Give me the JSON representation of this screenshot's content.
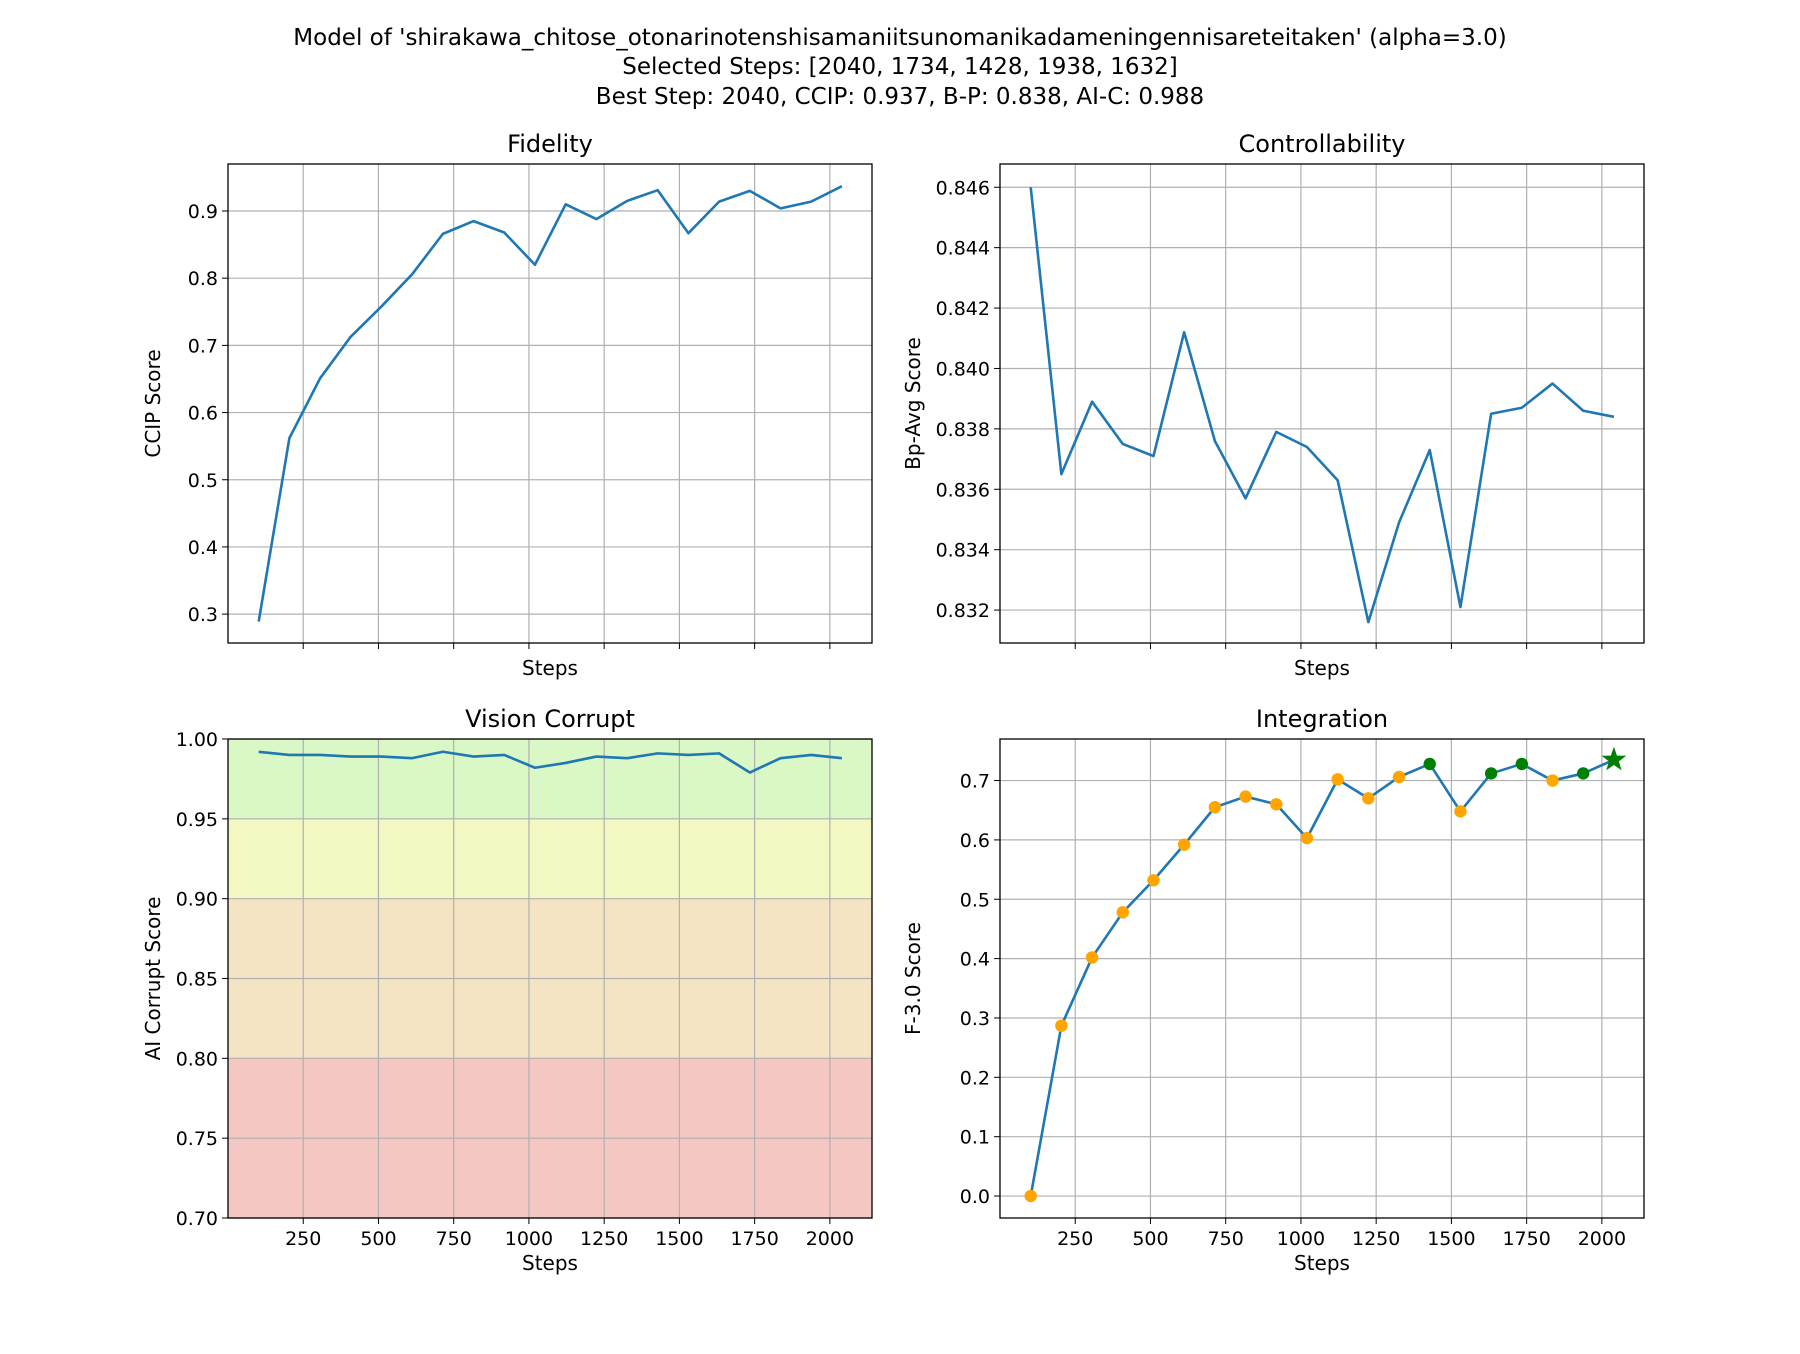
{
  "figure": {
    "title_lines": [
      "Model of 'shirakawa_chitose_otonarinotenshisamaniitsunomanikadameningennisareteitaken' (alpha=3.0)",
      "Selected Steps: [2040, 1734, 1428, 1938, 1632]",
      "Best Step: 2040, CCIP: 0.937, B-P: 0.838, AI-C: 0.988"
    ]
  },
  "colors": {
    "line": "#1f77b4",
    "point": "#ffa500",
    "selected": "#008000",
    "grid": "#b0b0b0",
    "band_excellent": "#daf7c6",
    "band_good": "#f3f7c2",
    "band_fair": "#f5e4c3",
    "band_poor": "#f5c7c2"
  },
  "chart_data": [
    {
      "id": "fidelity",
      "type": "line",
      "title": "Fidelity",
      "xlabel": "Steps",
      "ylabel": "CCIP Score",
      "xlim": [
        0,
        2140
      ],
      "ylim": [
        0.257,
        0.97
      ],
      "xticks": [
        250,
        500,
        750,
        1000,
        1250,
        1500,
        1750,
        2000
      ],
      "xtick_labels_visible": false,
      "yticks": [
        0.3,
        0.4,
        0.5,
        0.6,
        0.7,
        0.8,
        0.9
      ],
      "ytick_labels": [
        "0.3",
        "0.4",
        "0.5",
        "0.6",
        "0.7",
        "0.8",
        "0.9"
      ],
      "grid": true,
      "x": [
        102,
        204,
        306,
        408,
        510,
        612,
        714,
        816,
        918,
        1020,
        1122,
        1224,
        1326,
        1428,
        1530,
        1632,
        1734,
        1836,
        1938,
        2040
      ],
      "y": [
        0.289,
        0.562,
        0.651,
        0.713,
        0.758,
        0.806,
        0.866,
        0.885,
        0.868,
        0.82,
        0.91,
        0.888,
        0.915,
        0.931,
        0.867,
        0.914,
        0.93,
        0.904,
        0.914,
        0.937
      ]
    },
    {
      "id": "controllability",
      "type": "line",
      "title": "Controllability",
      "xlabel": "Steps",
      "ylabel": "Bp-Avg Score",
      "xlim": [
        0,
        2140
      ],
      "ylim": [
        0.83091,
        0.84677
      ],
      "xticks": [
        250,
        500,
        750,
        1000,
        1250,
        1500,
        1750,
        2000
      ],
      "xtick_labels_visible": false,
      "yticks": [
        0.832,
        0.834,
        0.836,
        0.838,
        0.84,
        0.842,
        0.844,
        0.846
      ],
      "ytick_labels": [
        "0.832",
        "0.834",
        "0.836",
        "0.838",
        "0.840",
        "0.842",
        "0.844",
        "0.846"
      ],
      "grid": true,
      "x": [
        102,
        204,
        306,
        408,
        510,
        612,
        714,
        816,
        918,
        1020,
        1122,
        1224,
        1326,
        1428,
        1530,
        1632,
        1734,
        1836,
        1938,
        2040
      ],
      "y": [
        0.846,
        0.8365,
        0.8389,
        0.8375,
        0.8371,
        0.8412,
        0.8376,
        0.8357,
        0.8379,
        0.8374,
        0.8363,
        0.8316,
        0.8349,
        0.8373,
        0.8321,
        0.8385,
        0.8387,
        0.8395,
        0.8386,
        0.8384
      ]
    },
    {
      "id": "vision_corrupt",
      "type": "line",
      "title": "Vision Corrupt",
      "xlabel": "Steps",
      "ylabel": "AI Corrupt Score",
      "xlim": [
        0,
        2140
      ],
      "ylim": [
        0.7,
        1.0
      ],
      "xticks": [
        250,
        500,
        750,
        1000,
        1250,
        1500,
        1750,
        2000
      ],
      "xtick_labels": [
        "250",
        "500",
        "750",
        "1000",
        "1250",
        "1500",
        "1750",
        "2000"
      ],
      "xtick_labels_visible": true,
      "yticks": [
        0.7,
        0.75,
        0.8,
        0.85,
        0.9,
        0.95,
        1.0
      ],
      "ytick_labels": [
        "0.70",
        "0.75",
        "0.80",
        "0.85",
        "0.90",
        "0.95",
        "1.00"
      ],
      "grid": true,
      "bands": [
        {
          "from": 0.95,
          "to": 1.0,
          "color_key": "band_excellent"
        },
        {
          "from": 0.9,
          "to": 0.95,
          "color_key": "band_good"
        },
        {
          "from": 0.8,
          "to": 0.9,
          "color_key": "band_fair"
        },
        {
          "from": 0.7,
          "to": 0.8,
          "color_key": "band_poor"
        }
      ],
      "x": [
        102,
        204,
        306,
        408,
        510,
        612,
        714,
        816,
        918,
        1020,
        1122,
        1224,
        1326,
        1428,
        1530,
        1632,
        1734,
        1836,
        1938,
        2040
      ],
      "y": [
        0.992,
        0.99,
        0.99,
        0.989,
        0.989,
        0.988,
        0.992,
        0.989,
        0.99,
        0.982,
        0.985,
        0.989,
        0.988,
        0.991,
        0.99,
        0.991,
        0.979,
        0.988,
        0.99,
        0.988
      ]
    },
    {
      "id": "integration",
      "type": "line",
      "title": "Integration",
      "xlabel": "Steps",
      "ylabel": "F-3.0 Score",
      "xlim": [
        0,
        2140
      ],
      "ylim": [
        -0.037,
        0.77
      ],
      "xticks": [
        250,
        500,
        750,
        1000,
        1250,
        1500,
        1750,
        2000
      ],
      "xtick_labels": [
        "250",
        "500",
        "750",
        "1000",
        "1250",
        "1500",
        "1750",
        "2000"
      ],
      "xtick_labels_visible": true,
      "yticks": [
        0.0,
        0.1,
        0.2,
        0.3,
        0.4,
        0.5,
        0.6,
        0.7
      ],
      "ytick_labels": [
        "0.0",
        "0.1",
        "0.2",
        "0.3",
        "0.4",
        "0.5",
        "0.6",
        "0.7"
      ],
      "grid": true,
      "x": [
        102,
        204,
        306,
        408,
        510,
        612,
        714,
        816,
        918,
        1020,
        1122,
        1224,
        1326,
        1428,
        1530,
        1632,
        1734,
        1836,
        1938,
        2040
      ],
      "y": [
        0.0,
        0.287,
        0.402,
        0.478,
        0.532,
        0.592,
        0.655,
        0.673,
        0.66,
        0.603,
        0.702,
        0.67,
        0.706,
        0.728,
        0.648,
        0.712,
        0.728,
        0.7,
        0.712,
        0.735
      ],
      "selected_steps": [
        2040,
        1734,
        1428,
        1938,
        1632
      ],
      "best_step": 2040
    }
  ]
}
